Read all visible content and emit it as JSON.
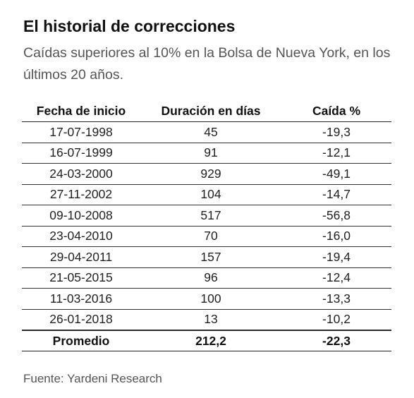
{
  "title": "El historial de correcciones",
  "subtitle": "Caídas superiores al 10% en la Bolsa de Nueva York, en los últimos 20 años.",
  "source": "Fuente: Yardeni Research",
  "chart_data": {
    "type": "table",
    "title": "El historial de correcciones",
    "subtitle": "Caídas superiores al 10% en la Bolsa de Nueva York, en los últimos 20 años.",
    "columns": [
      "Fecha de inicio",
      "Duración en días",
      "Caída %"
    ],
    "rows": [
      [
        "17-07-1998",
        "45",
        "-19,3"
      ],
      [
        "16-07-1999",
        "91",
        "-12,1"
      ],
      [
        "24-03-2000",
        "929",
        "-49,1"
      ],
      [
        "27-11-2002",
        "104",
        "-14,7"
      ],
      [
        "09-10-2008",
        "517",
        "-56,8"
      ],
      [
        "23-04-2010",
        "70",
        "-16,0"
      ],
      [
        "29-04-2011",
        "157",
        "-19,4"
      ],
      [
        "21-05-2015",
        "96",
        "-12,4"
      ],
      [
        "11-03-2016",
        "100",
        "-13,3"
      ],
      [
        "26-01-2018",
        "13",
        "-10,2"
      ]
    ],
    "footer": [
      "Promedio",
      "212,2",
      "-22,3"
    ]
  }
}
